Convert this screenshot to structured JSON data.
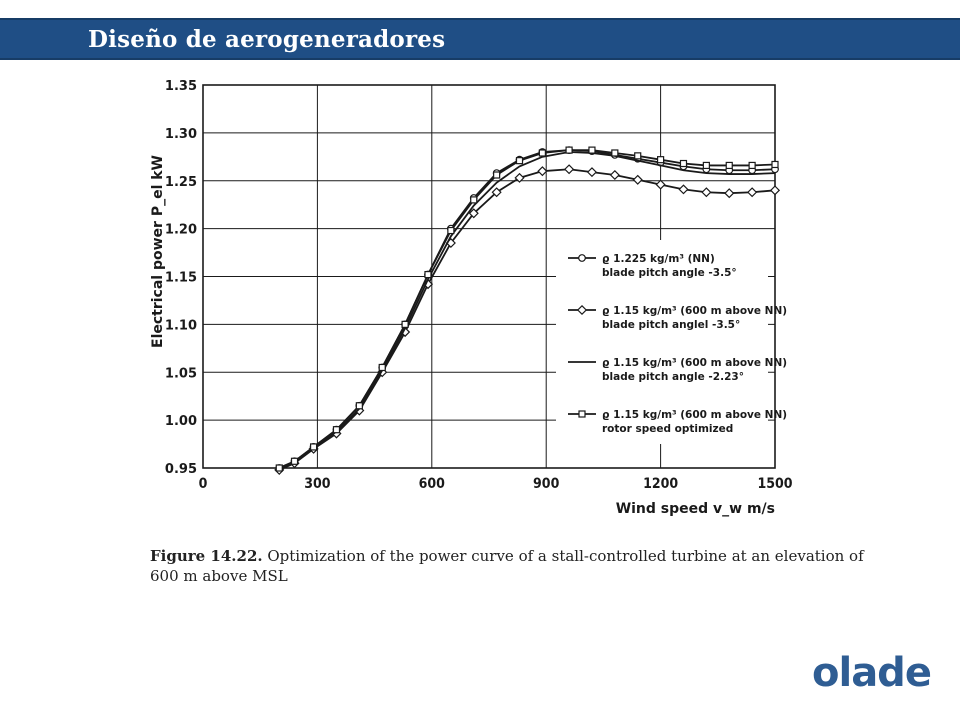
{
  "header": {
    "title": "Diseño de aerogeneradores"
  },
  "caption": {
    "lead": "Figure 14.22.",
    "text": " Optimization of the power curve of a stall-controlled turbine at an elevation of 600 m above MSL"
  },
  "logo": {
    "text": "olade",
    "color": "#2f5d93"
  },
  "colors": {
    "header_bg": "#1f4e85",
    "series": "#1a1a1a"
  },
  "chart_data": {
    "type": "line",
    "ylabel": "Electrical power P_el kW",
    "xlabel": "Wind speed v_w m/s",
    "xlim": [
      0,
      1500
    ],
    "ylim": [
      0.95,
      1.35
    ],
    "xticks": [
      0,
      300,
      600,
      900,
      1200,
      1500
    ],
    "yticks": [
      0.95,
      1.0,
      1.05,
      1.1,
      1.15,
      1.2,
      1.25,
      1.3,
      1.35
    ],
    "ytick_labels": [
      "0.95",
      "1.00",
      "1.05",
      "1.10",
      "1.15",
      "1.20",
      "1.25",
      "1.30",
      "1.35"
    ],
    "grid": true,
    "legend_position": "right",
    "series": [
      {
        "name": "ϱ 1.225 kg/m³ (NN) blade pitch angle -3.5°",
        "legend_line1": "ϱ 1.225 kg/m³ (NN)",
        "legend_line2": "blade pitch angle -3.5°",
        "marker": "circle",
        "x": [
          200,
          240,
          290,
          350,
          410,
          470,
          530,
          590,
          650,
          710,
          770,
          830,
          890,
          960,
          1020,
          1080,
          1140,
          1200,
          1260,
          1320,
          1380,
          1440,
          1500
        ],
        "y": [
          0.95,
          0.957,
          0.972,
          0.99,
          1.015,
          1.055,
          1.1,
          1.152,
          1.2,
          1.232,
          1.258,
          1.272,
          1.28,
          1.282,
          1.281,
          1.277,
          1.273,
          1.269,
          1.265,
          1.262,
          1.261,
          1.261,
          1.262
        ]
      },
      {
        "name": "ϱ 1.15 kg/m³ (600 m above NN) blade pitch angle -3.5°",
        "legend_line1": "ϱ 1.15 kg/m³ (600 m above NN)",
        "legend_line2": "blade pitch anglel -3.5°",
        "marker": "diamond",
        "x": [
          200,
          240,
          290,
          350,
          410,
          470,
          530,
          590,
          650,
          710,
          770,
          830,
          890,
          960,
          1020,
          1080,
          1140,
          1200,
          1260,
          1320,
          1380,
          1440,
          1500
        ],
        "y": [
          0.948,
          0.955,
          0.97,
          0.986,
          1.01,
          1.05,
          1.092,
          1.142,
          1.185,
          1.216,
          1.238,
          1.253,
          1.26,
          1.262,
          1.259,
          1.256,
          1.251,
          1.246,
          1.241,
          1.238,
          1.237,
          1.238,
          1.24
        ]
      },
      {
        "name": "ϱ 1.15 kg/m³ (600 m above NN) blade pitch angle -2.23°",
        "legend_line1": "ϱ 1.15 kg/m³ (600 m above NN)",
        "legend_line2": "blade pitch angle -2.23°",
        "marker": "none",
        "x": [
          200,
          240,
          290,
          350,
          410,
          470,
          530,
          590,
          650,
          710,
          770,
          830,
          890,
          960,
          1020,
          1080,
          1140,
          1200,
          1260,
          1320,
          1380,
          1440,
          1500
        ],
        "y": [
          0.949,
          0.956,
          0.971,
          0.988,
          1.012,
          1.052,
          1.096,
          1.147,
          1.192,
          1.224,
          1.248,
          1.265,
          1.275,
          1.28,
          1.279,
          1.276,
          1.271,
          1.266,
          1.261,
          1.258,
          1.257,
          1.257,
          1.258
        ]
      },
      {
        "name": "ϱ 1.15 kg/m³ (600 m above NN) rotor speed optimized",
        "legend_line1": "ϱ 1.15 kg/m³ (600 m above NN)",
        "legend_line2": "rotor speed optimized",
        "marker": "square",
        "x": [
          200,
          240,
          290,
          350,
          410,
          470,
          530,
          590,
          650,
          710,
          770,
          830,
          890,
          960,
          1020,
          1080,
          1140,
          1200,
          1260,
          1320,
          1380,
          1440,
          1500
        ],
        "y": [
          0.95,
          0.957,
          0.972,
          0.99,
          1.015,
          1.055,
          1.1,
          1.152,
          1.198,
          1.23,
          1.256,
          1.271,
          1.279,
          1.282,
          1.282,
          1.279,
          1.276,
          1.272,
          1.268,
          1.266,
          1.266,
          1.266,
          1.267
        ]
      }
    ]
  }
}
